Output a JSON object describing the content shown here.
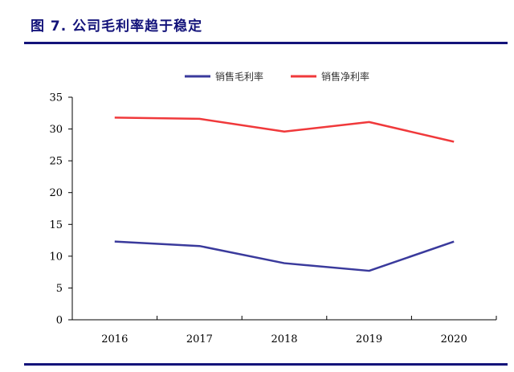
{
  "header": {
    "title": "图 7. 公司毛利率趋于稳定"
  },
  "chart_data": {
    "type": "line",
    "title": "",
    "xlabel": "",
    "ylabel": "",
    "categories": [
      "2016",
      "2017",
      "2018",
      "2019",
      "2020"
    ],
    "ylim": [
      0,
      35
    ],
    "yticks": [
      0,
      5,
      10,
      15,
      20,
      25,
      30,
      35
    ],
    "legend_position": "top-center",
    "grid": false,
    "series": [
      {
        "name": "销售毛利率",
        "color": "#3a3a9c",
        "values": [
          12.3,
          11.6,
          8.9,
          7.7,
          12.3
        ]
      },
      {
        "name": "销售净利率",
        "color": "#f0393b",
        "values": [
          31.8,
          31.6,
          29.6,
          31.1,
          28.0
        ]
      }
    ]
  }
}
